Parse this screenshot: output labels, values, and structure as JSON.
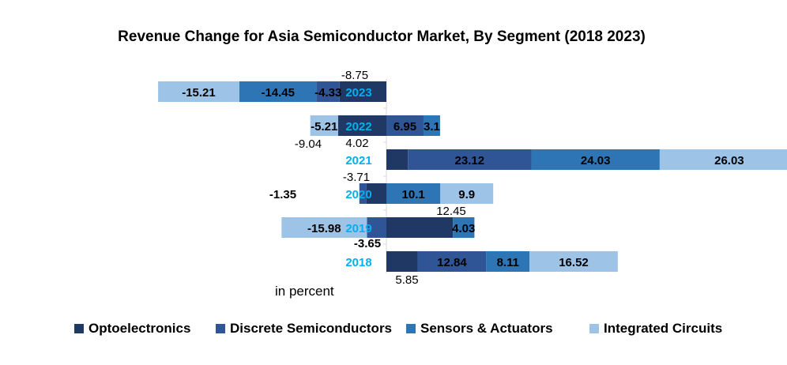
{
  "chart_data": {
    "type": "bar",
    "orientation": "horizontal",
    "stacked": true,
    "title": "Revenue Change for Asia Semiconductor Market, By Segment (2018 2023)",
    "unit_note": "in percent",
    "legend_position": "bottom",
    "grid": false,
    "categories": [
      "2023",
      "2022",
      "2021",
      "2020",
      "2019",
      "2018"
    ],
    "series": [
      {
        "name": "Optoelectronics",
        "color": "#1f3864",
        "values": [
          -8.75,
          -9.04,
          4.02,
          -3.71,
          12.45,
          5.85
        ]
      },
      {
        "name": "Discrete Semiconductors",
        "color": "#2f5597",
        "values": [
          -4.33,
          6.95,
          23.12,
          -1.35,
          -3.65,
          12.84
        ]
      },
      {
        "name": "Sensors & Actuators",
        "color": "#2e75b6",
        "values": [
          -14.45,
          3.1,
          24.03,
          10.1,
          4.03,
          8.11
        ]
      },
      {
        "name": "Integrated Circuits",
        "color": "#9dc3e6",
        "values": [
          -15.21,
          -5.21,
          26.03,
          9.9,
          -15.98,
          16.52
        ]
      }
    ],
    "category_label_color": "#00b0f0"
  }
}
